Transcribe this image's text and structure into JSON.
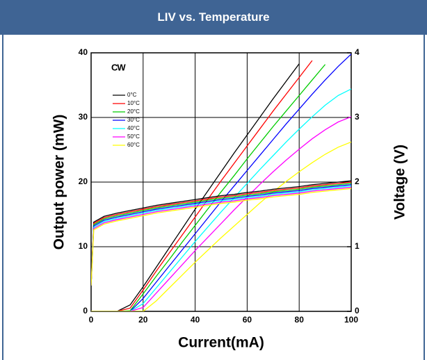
{
  "header": {
    "title": "LIV vs. Temperature"
  },
  "chart_data": {
    "type": "line",
    "x_label": "Current(mA)",
    "y_label": "Output power (mW)",
    "y2_label": "Voltage (V)",
    "annotation": "CW",
    "x": [
      0,
      1,
      5,
      10,
      15,
      20,
      25,
      30,
      35,
      40,
      45,
      50,
      55,
      60,
      65,
      70,
      75,
      80,
      85,
      90,
      95,
      100
    ],
    "xlim": [
      0,
      100
    ],
    "xticks": [
      0,
      20,
      40,
      60,
      80,
      100
    ],
    "ylim": [
      0,
      40
    ],
    "yticks": [
      0,
      10,
      20,
      30,
      40
    ],
    "y2lim": [
      0,
      4
    ],
    "y2ticks": [
      0,
      1,
      2,
      3,
      4
    ],
    "grid": true,
    "series": [
      {
        "name": "0°C",
        "color": "#000000",
        "values": [
          0,
          0,
          0,
          0,
          1.0,
          3.8,
          6.8,
          9.8,
          12.8,
          15.8,
          18.7,
          21.6,
          24.5,
          27.3,
          30.1,
          32.9,
          35.6,
          38.3,
          null,
          null,
          null,
          null
        ]
      },
      {
        "name": "10°C",
        "color": "#ff0000",
        "values": [
          0,
          0,
          0,
          0,
          0.5,
          3.3,
          6.2,
          9.0,
          11.8,
          14.6,
          17.4,
          20.2,
          22.9,
          25.6,
          28.3,
          31.0,
          33.6,
          36.2,
          38.8,
          null,
          null,
          null
        ]
      },
      {
        "name": "20°C",
        "color": "#00cc00",
        "values": [
          0,
          0,
          0,
          0,
          0.1,
          2.7,
          5.4,
          8.0,
          10.7,
          13.3,
          15.9,
          18.5,
          21.0,
          23.6,
          26.1,
          28.6,
          31.0,
          33.4,
          35.8,
          38.2,
          null,
          null
        ]
      },
      {
        "name": "30°C",
        "color": "#0000ff",
        "values": [
          0,
          0,
          0,
          0,
          0,
          2.0,
          4.5,
          7.0,
          9.5,
          12.0,
          14.5,
          17.0,
          19.4,
          21.8,
          24.2,
          26.6,
          29.0,
          31.3,
          33.6,
          35.8,
          37.9,
          39.8
        ]
      },
      {
        "name": "40°C",
        "color": "#00ffff",
        "values": [
          0,
          0,
          0,
          0,
          0,
          1.2,
          3.6,
          6.0,
          8.4,
          10.8,
          13.1,
          15.4,
          17.6,
          19.8,
          22.0,
          24.1,
          26.2,
          28.2,
          30.1,
          31.9,
          33.4,
          34.4
        ]
      },
      {
        "name": "50°C",
        "color": "#ff00ff",
        "values": [
          0,
          0,
          0,
          0,
          0,
          0.6,
          2.8,
          5.0,
          7.2,
          9.4,
          11.5,
          13.6,
          15.7,
          17.7,
          19.7,
          21.6,
          23.4,
          25.1,
          26.7,
          28.1,
          29.3,
          30.1
        ]
      },
      {
        "name": "60°C",
        "color": "#ffff00",
        "values": [
          0,
          0,
          0,
          0,
          0,
          0,
          1.6,
          3.6,
          5.6,
          7.6,
          9.5,
          11.4,
          13.2,
          15.0,
          16.8,
          18.5,
          20.1,
          21.6,
          23.0,
          24.3,
          25.4,
          26.2
        ]
      },
      {
        "color": "#000000",
        "axis": "y2",
        "values": [
          0.4,
          1.38,
          1.47,
          1.52,
          1.56,
          1.6,
          1.64,
          1.67,
          1.7,
          1.73,
          1.76,
          1.79,
          1.81,
          1.84,
          1.86,
          1.89,
          1.91,
          1.93,
          1.96,
          1.98,
          2.0,
          2.02
        ]
      },
      {
        "color": "#ff0000",
        "axis": "y2",
        "values": [
          0.4,
          1.36,
          1.45,
          1.5,
          1.54,
          1.58,
          1.62,
          1.65,
          1.68,
          1.71,
          1.74,
          1.77,
          1.79,
          1.82,
          1.84,
          1.87,
          1.89,
          1.91,
          1.94,
          1.96,
          1.98,
          2.0
        ]
      },
      {
        "color": "#00cc00",
        "axis": "y2",
        "values": [
          0.4,
          1.34,
          1.43,
          1.48,
          1.52,
          1.56,
          1.6,
          1.63,
          1.66,
          1.69,
          1.72,
          1.75,
          1.77,
          1.8,
          1.82,
          1.85,
          1.87,
          1.89,
          1.92,
          1.94,
          1.96,
          1.98
        ]
      },
      {
        "color": "#0000ff",
        "axis": "y2",
        "values": [
          0.4,
          1.32,
          1.41,
          1.46,
          1.5,
          1.54,
          1.58,
          1.61,
          1.64,
          1.67,
          1.7,
          1.73,
          1.75,
          1.78,
          1.8,
          1.83,
          1.85,
          1.87,
          1.9,
          1.92,
          1.94,
          1.96
        ]
      },
      {
        "color": "#00ffff",
        "axis": "y2",
        "values": [
          0.4,
          1.3,
          1.39,
          1.44,
          1.48,
          1.52,
          1.56,
          1.59,
          1.62,
          1.65,
          1.68,
          1.71,
          1.73,
          1.76,
          1.78,
          1.81,
          1.83,
          1.85,
          1.88,
          1.9,
          1.92,
          1.94
        ]
      },
      {
        "color": "#ff00ff",
        "axis": "y2",
        "values": [
          0.4,
          1.28,
          1.37,
          1.42,
          1.46,
          1.5,
          1.54,
          1.57,
          1.6,
          1.63,
          1.66,
          1.69,
          1.71,
          1.74,
          1.76,
          1.79,
          1.81,
          1.83,
          1.86,
          1.88,
          1.9,
          1.92
        ]
      },
      {
        "color": "#ffff00",
        "axis": "y2",
        "values": [
          0.4,
          1.26,
          1.35,
          1.4,
          1.44,
          1.48,
          1.52,
          1.55,
          1.58,
          1.61,
          1.64,
          1.67,
          1.69,
          1.72,
          1.74,
          1.77,
          1.79,
          1.81,
          1.84,
          1.86,
          1.88,
          1.9
        ]
      }
    ]
  }
}
